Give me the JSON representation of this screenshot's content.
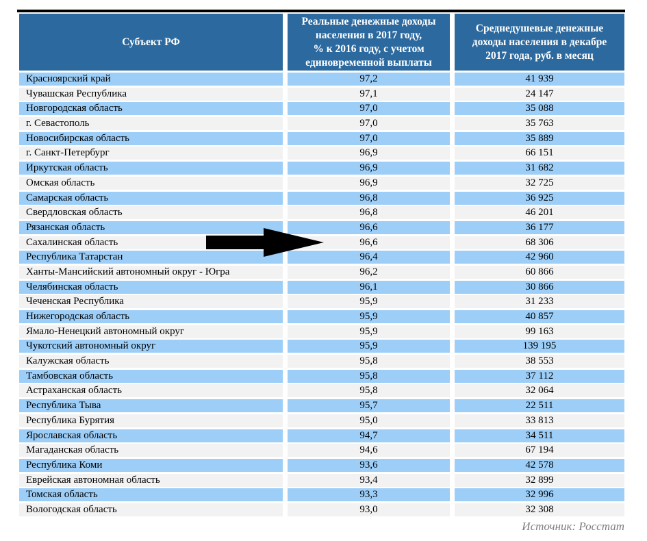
{
  "table": {
    "columns": [
      {
        "label": "Субъект РФ"
      },
      {
        "label": "Реальные денежные доходы\nнаселения в 2017 году,\n% к 2016 году, с учетом\nединовременной выплаты"
      },
      {
        "label": "Среднедушевые денежные\nдоходы населения в декабре\n2017 года, руб. в месяц"
      }
    ],
    "rows": [
      {
        "region": "Красноярский край",
        "real_income_pct": "97,2",
        "avg_income_rub": "41 939"
      },
      {
        "region": "Чувашская Республика",
        "real_income_pct": "97,1",
        "avg_income_rub": "24 147"
      },
      {
        "region": "Новгородская область",
        "real_income_pct": "97,0",
        "avg_income_rub": "35 088"
      },
      {
        "region": "г. Севастополь",
        "real_income_pct": "97,0",
        "avg_income_rub": "35 763"
      },
      {
        "region": "Новосибирская область",
        "real_income_pct": "97,0",
        "avg_income_rub": "35 889"
      },
      {
        "region": "г. Санкт-Петербург",
        "real_income_pct": "96,9",
        "avg_income_rub": "66 151"
      },
      {
        "region": "Иркутская область",
        "real_income_pct": "96,9",
        "avg_income_rub": "31 682"
      },
      {
        "region": "Омская область",
        "real_income_pct": "96,9",
        "avg_income_rub": "32 725"
      },
      {
        "region": "Самарская область",
        "real_income_pct": "96,8",
        "avg_income_rub": "36 925"
      },
      {
        "region": "Свердловская область",
        "real_income_pct": "96,8",
        "avg_income_rub": "46 201"
      },
      {
        "region": "Рязанская область",
        "real_income_pct": "96,6",
        "avg_income_rub": "36 177"
      },
      {
        "region": "Сахалинская область",
        "real_income_pct": "96,6",
        "avg_income_rub": "68 306"
      },
      {
        "region": "Республика Татарстан",
        "real_income_pct": "96,4",
        "avg_income_rub": "42 960"
      },
      {
        "region": "Ханты-Мансийский автономный округ - Югра",
        "real_income_pct": "96,2",
        "avg_income_rub": "60 866"
      },
      {
        "region": "Челябинская область",
        "real_income_pct": "96,1",
        "avg_income_rub": "30 866"
      },
      {
        "region": "Чеченская Республика",
        "real_income_pct": "95,9",
        "avg_income_rub": "31 233"
      },
      {
        "region": "Нижегородская область",
        "real_income_pct": "95,9",
        "avg_income_rub": "40 857"
      },
      {
        "region": "Ямало-Ненецкий автономный округ",
        "real_income_pct": "95,9",
        "avg_income_rub": "99 163"
      },
      {
        "region": "Чукотский автономный округ",
        "real_income_pct": "95,9",
        "avg_income_rub": "139 195"
      },
      {
        "region": "Калужская область",
        "real_income_pct": "95,8",
        "avg_income_rub": "38 553"
      },
      {
        "region": "Тамбовская область",
        "real_income_pct": "95,8",
        "avg_income_rub": "37 112"
      },
      {
        "region": "Астраханская область",
        "real_income_pct": "95,8",
        "avg_income_rub": "32 064"
      },
      {
        "region": "Республика Тыва",
        "real_income_pct": "95,7",
        "avg_income_rub": "22 511"
      },
      {
        "region": "Республика Бурятия",
        "real_income_pct": "95,0",
        "avg_income_rub": "33 813"
      },
      {
        "region": "Ярославская область",
        "real_income_pct": "94,7",
        "avg_income_rub": "34 511"
      },
      {
        "region": "Магаданская область",
        "real_income_pct": "94,6",
        "avg_income_rub": "67 194"
      },
      {
        "region": "Республика Коми",
        "real_income_pct": "93,6",
        "avg_income_rub": "42 578"
      },
      {
        "region": "Еврейская автономная область",
        "real_income_pct": "93,4",
        "avg_income_rub": "32 899"
      },
      {
        "region": "Томская область",
        "real_income_pct": "93,3",
        "avg_income_rub": "32 996"
      },
      {
        "region": "Вологодская область",
        "real_income_pct": "93,0",
        "avg_income_rub": "32 308"
      }
    ]
  },
  "annotation": {
    "arrow_target_region": "Сахалинская область",
    "arrow_color": "#000000"
  },
  "source_note": "Источник: Росстат",
  "colors": {
    "header_bg": "#2C699E",
    "header_text": "#ffffff",
    "row_blue": "#9CCEF8",
    "row_gray": "#F2F2F2",
    "top_line": "#000000",
    "source_text": "#7e7e7e"
  }
}
